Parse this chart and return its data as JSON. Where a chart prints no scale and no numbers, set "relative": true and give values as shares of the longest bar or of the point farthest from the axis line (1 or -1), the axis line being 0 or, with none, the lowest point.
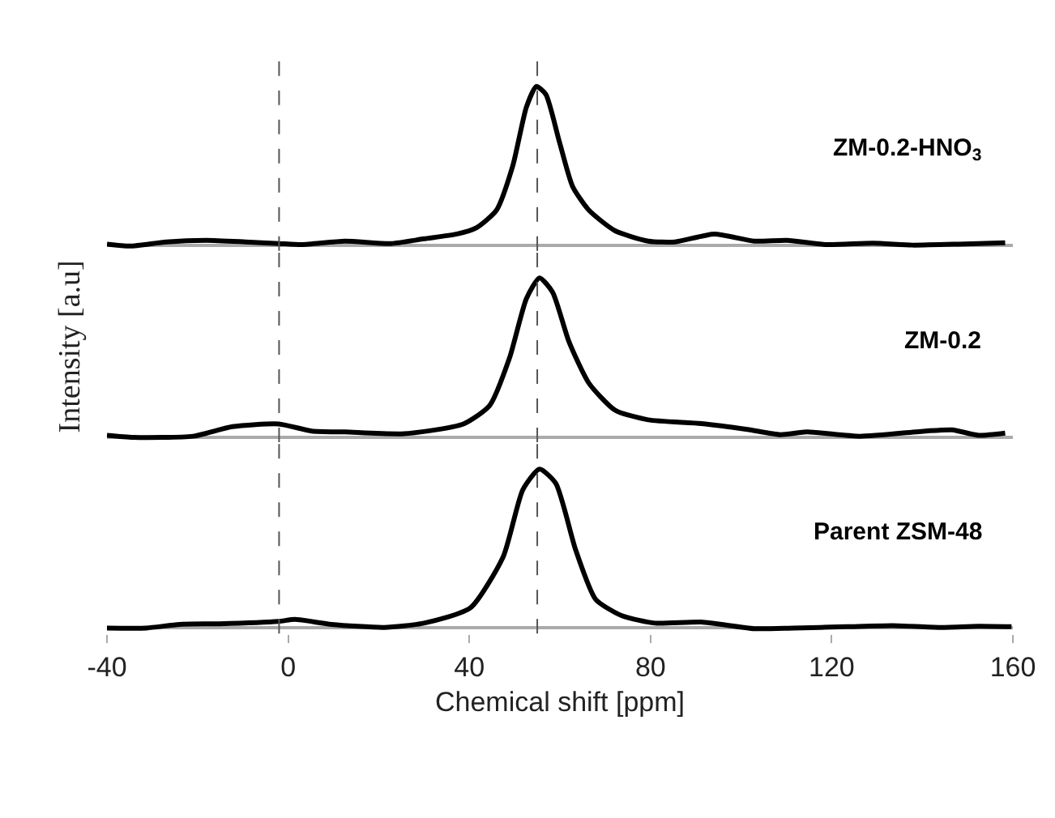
{
  "chart_data": [
    {
      "type": "line",
      "relative": true,
      "tick_labels": false,
      "xlim": [
        -40,
        160
      ],
      "line_style": "solid",
      "marker": "none",
      "ref_lines": [
        {
          "axis": "x",
          "value": -2,
          "color": "#555555",
          "line_style": "dashed"
        },
        {
          "axis": "x",
          "value": 55,
          "color": "#555555",
          "line_style": "dashed"
        }
      ],
      "series": [
        {
          "name": "ZM-0.2-HNO$_{3}$",
          "color": "#000000",
          "x": [
            -40,
            -34.9,
            -26.9,
            -18.1,
            -9.4,
            -2.1,
            3,
            12.5,
            22.7,
            30,
            37.3,
            41.6,
            46,
            49.6,
            52.6,
            54.8,
            56.9,
            59.9,
            62.8,
            66.4,
            72.2,
            79.5,
            85.4,
            94.1,
            102.9,
            110.1,
            118.9,
            129.1,
            137.8,
            148,
            158.3
          ],
          "values": [
            0.006,
            -0.006,
            0.02,
            0.03,
            0.02,
            0.01,
            0.003,
            0.025,
            0.01,
            0.04,
            0.07,
            0.11,
            0.22,
            0.5,
            0.87,
            1.0,
            0.95,
            0.65,
            0.37,
            0.22,
            0.09,
            0.025,
            0.02,
            0.07,
            0.025,
            0.03,
            0.003,
            0.012,
            0,
            0.006,
            0.015
          ]
        }
      ]
    },
    {
      "type": "line",
      "relative": true,
      "tick_labels": false,
      "xlim": [
        -40,
        160
      ],
      "line_style": "solid",
      "marker": "none",
      "ylabel": "Intensity [a.u]",
      "ref_lines": [
        {
          "axis": "x",
          "value": -2,
          "color": "#555555",
          "line_style": "dashed"
        },
        {
          "axis": "x",
          "value": 55,
          "color": "#555555",
          "line_style": "dashed"
        }
      ],
      "series": [
        {
          "name": "ZM-0.2",
          "color": "#000000",
          "x": [
            -40,
            -34.2,
            -21,
            -12.3,
            -2.1,
            5.2,
            12.5,
            25.6,
            38.7,
            44.5,
            48.9,
            52.6,
            55.5,
            58.4,
            62,
            66.4,
            72.2,
            79.5,
            91.2,
            101.4,
            108.7,
            114.5,
            126.2,
            140.8,
            146.6,
            152.4,
            158.3
          ],
          "values": [
            0.013,
            0,
            0.007,
            0.067,
            0.084,
            0.04,
            0.034,
            0.023,
            0.084,
            0.2,
            0.5,
            0.87,
            1.0,
            0.91,
            0.6,
            0.34,
            0.17,
            0.11,
            0.087,
            0.05,
            0.017,
            0.034,
            0.007,
            0.04,
            0.047,
            0.013,
            0.027
          ]
        }
      ]
    },
    {
      "type": "line",
      "relative": true,
      "tick_labels": "x",
      "xlim": [
        -40,
        160
      ],
      "xticks": [
        -40,
        0,
        40,
        80,
        120,
        160
      ],
      "xlabel": "Chemical shift [ppm]",
      "line_style": "solid",
      "marker": "none",
      "ref_lines": [
        {
          "axis": "x",
          "value": -2,
          "color": "#555555",
          "line_style": "dashed"
        },
        {
          "axis": "x",
          "value": 55,
          "color": "#555555",
          "line_style": "dashed"
        }
      ],
      "series": [
        {
          "name": "Parent ZSM-48",
          "color": "#000000",
          "x": [
            -40,
            -31.3,
            -24,
            -15.2,
            -2.1,
            1.5,
            9.6,
            21.2,
            30,
            40.2,
            47.5,
            51.8,
            55.5,
            59.1,
            63.5,
            67.9,
            73.7,
            81,
            91.2,
            102.9,
            111.6,
            123.3,
            133.5,
            143.7,
            152.4,
            159.7
          ],
          "values": [
            0,
            0,
            0.023,
            0.027,
            0.042,
            0.054,
            0.023,
            0.004,
            0.031,
            0.126,
            0.45,
            0.87,
            1.0,
            0.91,
            0.49,
            0.18,
            0.077,
            0.031,
            0.038,
            -0.004,
            0,
            0.008,
            0.015,
            0.004,
            0.011,
            0.008
          ]
        }
      ]
    }
  ]
}
